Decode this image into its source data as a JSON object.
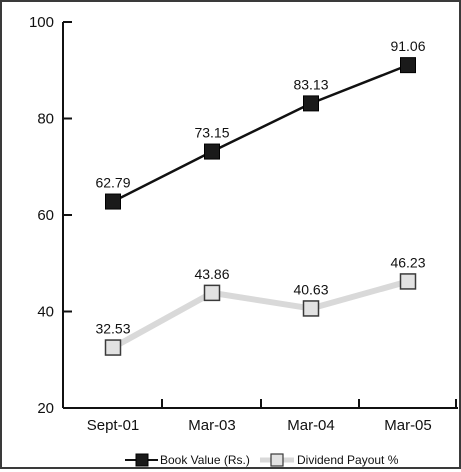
{
  "chart_data": {
    "type": "line",
    "categories": [
      "Sept-01",
      "Mar-03",
      "Mar-04",
      "Mar-05"
    ],
    "series": [
      {
        "name": "Book Value (Rs.)",
        "values": [
          62.79,
          73.15,
          83.13,
          91.06
        ],
        "labels": [
          "62.79",
          "73.15",
          "83.13",
          "91.06"
        ],
        "color": "#111111",
        "marker": "filled-square"
      },
      {
        "name": "Dividend Payout %",
        "values": [
          32.53,
          43.86,
          40.63,
          46.23
        ],
        "labels": [
          "32.53",
          "43.86",
          "40.63",
          "46.23"
        ],
        "color": "#d9d9d9",
        "marker": "light-square"
      }
    ],
    "ylim": [
      20,
      100
    ],
    "yticks": [
      "20",
      "40",
      "60",
      "80",
      "100"
    ],
    "xlabel": "",
    "ylabel": "",
    "grid": false,
    "legend_position": "bottom"
  }
}
